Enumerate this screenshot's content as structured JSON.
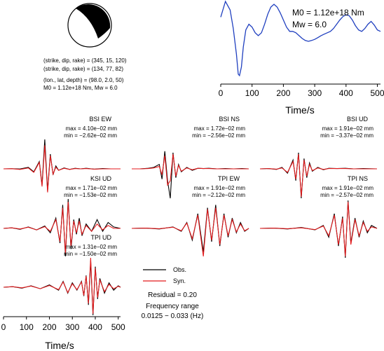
{
  "beachball": {
    "params": [
      "(strike, dip, rake) = (345, 15, 120)",
      "(strike, dip, rake) = (134, 77, 82)",
      "(lon., lat, depth) = (98.0, 2.0, 50)",
      "M0 = 1.12e+18 Nm, Mw = 6.0"
    ]
  },
  "colors": {
    "observed": "#000000",
    "synthetic": "#e41a1c",
    "stf": "#1f3fbf"
  },
  "chart_data": [
    {
      "type": "line",
      "panel": "source-time-function",
      "annotations": [
        "M0 = 1.12e+18 Nm",
        "Mw = 6.0"
      ],
      "xlabel": "Time/s",
      "xlim": [
        0,
        510
      ],
      "xticks": [
        "0",
        "100",
        "200",
        "300",
        "400",
        "500"
      ],
      "ylim": [
        -1.5,
        1.25
      ],
      "series": [
        {
          "x": [
            0,
            15,
            30,
            40,
            50,
            56,
            60,
            66,
            72,
            80,
            90,
            100,
            110,
            120,
            130,
            140,
            150,
            160,
            170,
            180,
            190,
            200,
            210,
            220,
            230,
            240,
            250,
            260,
            270,
            280,
            290,
            300,
            310,
            320,
            330,
            340,
            350,
            360,
            370,
            380,
            390,
            400,
            410,
            420,
            430,
            440,
            450,
            460,
            470,
            480,
            490,
            500,
            510
          ],
          "y": [
            0.7,
            1.25,
            0.95,
            0.3,
            -0.6,
            -1.3,
            -1.35,
            -1.05,
            -0.35,
            0.25,
            0.45,
            0.35,
            0.15,
            0.05,
            0.15,
            0.45,
            0.8,
            1.05,
            1.15,
            1.05,
            0.85,
            0.6,
            0.35,
            0.2,
            0.2,
            0.15,
            0.05,
            -0.05,
            -0.12,
            -0.15,
            -0.12,
            -0.08,
            -0.02,
            0.05,
            0.1,
            0.15,
            0.2,
            0.3,
            0.45,
            0.6,
            0.72,
            0.78,
            0.75,
            0.6,
            0.4,
            0.25,
            0.2,
            0.3,
            0.45,
            0.55,
            0.42,
            0.25,
            0.2
          ]
        }
      ]
    },
    {
      "type": "line",
      "panel": "BSI EW",
      "title": "BSI EW",
      "max": "max = 4.10e−02 mm",
      "min": "min = −2.62e−02 mm",
      "series": [
        {
          "name": "Obs.",
          "x": [
            0,
            12,
            24,
            36,
            44,
            52,
            56,
            60,
            64,
            68,
            72,
            76,
            80,
            88,
            96,
            104,
            112,
            120,
            132,
            144,
            156,
            170
          ],
          "y": [
            0,
            0.005,
            -0.005,
            0.05,
            -0.1,
            0.25,
            -0.55,
            1.0,
            -0.75,
            0.5,
            -0.2,
            0.1,
            -0.05,
            0.03,
            -0.02,
            0.02,
            0,
            0.02,
            -0.01,
            0.01,
            0,
            0
          ]
        },
        {
          "name": "Syn.",
          "x": [
            0,
            12,
            24,
            36,
            44,
            52,
            56,
            60,
            64,
            68,
            72,
            76,
            80,
            88,
            96,
            104,
            112,
            120,
            132,
            144,
            156,
            170
          ],
          "y": [
            0,
            0.005,
            -0.02,
            0.03,
            -0.12,
            0.22,
            -0.6,
            0.8,
            -0.8,
            0.45,
            -0.18,
            0.06,
            -0.05,
            0.02,
            -0.02,
            0.01,
            0,
            0.01,
            -0.01,
            0,
            0,
            0
          ]
        }
      ]
    },
    {
      "type": "line",
      "panel": "BSI NS",
      "title": "BSI NS",
      "max": "max = 1.72e−02 mm",
      "min": "min = −2.56e−02 mm",
      "series": [
        {
          "name": "Obs.",
          "x": [
            0,
            12,
            24,
            32,
            40,
            44,
            48,
            52,
            56,
            60,
            64,
            68,
            72,
            80,
            88,
            96,
            104,
            112,
            124,
            136,
            148,
            160,
            170
          ],
          "y": [
            0,
            0,
            0.02,
            0.05,
            0.15,
            -0.35,
            0.6,
            -0.4,
            -1.0,
            0.55,
            -0.3,
            0.15,
            -0.1,
            0.05,
            -0.05,
            0.02,
            0.01,
            0.02,
            0,
            0.01,
            0,
            0.01,
            0
          ]
        },
        {
          "name": "Syn.",
          "x": [
            0,
            12,
            24,
            32,
            40,
            44,
            48,
            52,
            56,
            60,
            64,
            68,
            72,
            80,
            88,
            96,
            104,
            112,
            124,
            136,
            148,
            160,
            170
          ],
          "y": [
            0,
            0,
            0.01,
            0.03,
            0.08,
            -0.2,
            0.45,
            -0.55,
            -0.4,
            0.5,
            -0.25,
            0.12,
            -0.08,
            0.03,
            -0.03,
            0.02,
            0.01,
            0.01,
            0,
            0,
            0,
            0,
            0
          ]
        }
      ]
    },
    {
      "type": "line",
      "panel": "BSI UD",
      "title": "BSI UD",
      "max": "max = 1.91e−02 mm",
      "min": "min = −3.37e−02 mm",
      "series": [
        {
          "name": "Obs.",
          "x": [
            0,
            12,
            24,
            32,
            40,
            48,
            52,
            56,
            60,
            64,
            68,
            72,
            76,
            84,
            92,
            100,
            112,
            124,
            136,
            150,
            170
          ],
          "y": [
            0,
            0.01,
            -0.02,
            0.05,
            -0.15,
            0.3,
            -0.4,
            0.55,
            -1.0,
            0.35,
            -0.3,
            0.2,
            -0.08,
            0.05,
            -0.03,
            0.02,
            0.01,
            0.02,
            0,
            0.01,
            0
          ]
        },
        {
          "name": "Syn.",
          "x": [
            0,
            12,
            24,
            32,
            40,
            48,
            52,
            56,
            60,
            64,
            68,
            72,
            76,
            84,
            92,
            100,
            112,
            124,
            136,
            150,
            170
          ],
          "y": [
            0,
            0.01,
            -0.01,
            0.03,
            -0.12,
            0.25,
            -0.35,
            0.5,
            -0.95,
            0.3,
            -0.25,
            0.15,
            -0.06,
            0.03,
            -0.02,
            0.01,
            0.01,
            0.01,
            0,
            0,
            0
          ]
        }
      ]
    },
    {
      "type": "line",
      "panel": "KSI UD",
      "title": "KSI UD",
      "max": "max = 1.71e−02 mm",
      "min": "min = −1.53e−02 mm",
      "series": [
        {
          "name": "Obs.",
          "x": [
            0,
            12,
            24,
            36,
            48,
            60,
            68,
            76,
            82,
            86,
            90,
            94,
            98,
            102,
            106,
            110,
            114,
            120,
            128,
            136,
            144,
            152,
            160,
            170
          ],
          "y": [
            0,
            0.02,
            -0.03,
            0.05,
            -0.05,
            0.08,
            -0.15,
            0.35,
            -0.5,
            0.8,
            -0.95,
            1.0,
            -0.7,
            0.3,
            -0.2,
            0.35,
            -0.25,
            0.15,
            -0.1,
            0.3,
            -0.1,
            0.2,
            0.05,
            0
          ]
        },
        {
          "name": "Syn.",
          "x": [
            0,
            12,
            24,
            36,
            48,
            60,
            68,
            76,
            82,
            86,
            90,
            94,
            98,
            102,
            106,
            110,
            114,
            120,
            128,
            136,
            144,
            152,
            160,
            170
          ],
          "y": [
            0,
            0.02,
            -0.02,
            0.04,
            -0.05,
            0.06,
            -0.1,
            0.3,
            -0.45,
            0.7,
            -0.85,
            0.9,
            -0.6,
            0.25,
            -0.15,
            0.25,
            -0.2,
            0.1,
            -0.1,
            0.15,
            -0.05,
            0.1,
            0,
            0
          ]
        }
      ]
    },
    {
      "type": "line",
      "panel": "TPI EW",
      "title": "TPI EW",
      "max": "max = 1.91e−02 mm",
      "min": "min = −2.12e−02 mm",
      "series": [
        {
          "name": "Obs.",
          "x": [
            0,
            20,
            40,
            60,
            72,
            80,
            88,
            96,
            104,
            110,
            116,
            122,
            128,
            134,
            140,
            146,
            152,
            158,
            164,
            170
          ],
          "y": [
            0,
            0.01,
            -0.02,
            0.05,
            -0.1,
            0.2,
            -0.4,
            0.5,
            -0.8,
            0.7,
            -0.45,
            0.8,
            -0.6,
            0.5,
            -0.3,
            0.35,
            -0.15,
            0.2,
            -0.1,
            0
          ]
        },
        {
          "name": "Syn.",
          "x": [
            0,
            20,
            40,
            60,
            72,
            80,
            88,
            96,
            104,
            110,
            116,
            122,
            128,
            134,
            140,
            146,
            152,
            158,
            164,
            170
          ],
          "y": [
            0,
            0.01,
            -0.01,
            0.04,
            -0.08,
            0.18,
            -0.35,
            0.45,
            -0.95,
            0.65,
            -0.4,
            0.7,
            -0.55,
            0.45,
            -0.25,
            0.3,
            -0.12,
            0.15,
            -0.08,
            0
          ]
        }
      ]
    },
    {
      "type": "line",
      "panel": "TPI NS",
      "title": "TPI NS",
      "max": "max = 1.91e−02 mm",
      "min": "min = −2.57e−02 mm",
      "series": [
        {
          "name": "Obs.",
          "x": [
            0,
            20,
            40,
            60,
            80,
            92,
            100,
            108,
            114,
            120,
            124,
            128,
            132,
            138,
            144,
            150,
            156,
            162,
            170
          ],
          "y": [
            0,
            0.01,
            -0.02,
            0.03,
            -0.05,
            0.1,
            -0.3,
            0.5,
            -0.6,
            0.4,
            -1.0,
            0.95,
            -0.5,
            0.35,
            -0.3,
            0.25,
            -0.15,
            0.1,
            0
          ]
        },
        {
          "name": "Syn.",
          "x": [
            0,
            20,
            40,
            60,
            80,
            92,
            100,
            108,
            114,
            120,
            124,
            128,
            132,
            138,
            144,
            150,
            156,
            162,
            170
          ],
          "y": [
            0,
            0.01,
            -0.01,
            0.02,
            -0.04,
            0.08,
            -0.25,
            0.45,
            -0.55,
            0.35,
            -0.95,
            0.9,
            -0.55,
            0.3,
            -0.25,
            0.2,
            -0.1,
            0.05,
            0
          ]
        }
      ]
    },
    {
      "type": "line",
      "panel": "TPI UD",
      "title": "TPI UD",
      "max": "max = 1.31e−02 mm",
      "min": "min = −1.50e−02 mm",
      "xlabel": "Time/s",
      "xlim": [
        0,
        510
      ],
      "xticks": [
        "0",
        "100",
        "200",
        "300",
        "400",
        "500"
      ],
      "series": [
        {
          "name": "Obs.",
          "x": [
            0,
            40,
            80,
            120,
            160,
            200,
            240,
            260,
            280,
            300,
            320,
            340,
            350,
            360,
            370,
            380,
            390,
            400,
            410,
            420,
            440,
            460,
            480,
            500,
            510
          ],
          "y": [
            0,
            0.02,
            -0.03,
            0.05,
            -0.05,
            0.08,
            -0.1,
            0.2,
            -0.2,
            0.15,
            -0.1,
            0.2,
            -0.3,
            0.4,
            -0.6,
            0.9,
            -0.95,
            0.7,
            -0.4,
            0.3,
            -0.2,
            0.15,
            -0.1,
            0.05,
            0
          ]
        },
        {
          "name": "Syn.",
          "x": [
            0,
            40,
            80,
            120,
            160,
            200,
            240,
            260,
            280,
            300,
            320,
            340,
            350,
            360,
            370,
            380,
            390,
            400,
            410,
            420,
            440,
            460,
            480,
            500,
            510
          ],
          "y": [
            0,
            0.02,
            -0.02,
            0.04,
            -0.05,
            0.06,
            -0.08,
            0.18,
            -0.18,
            0.12,
            -0.08,
            0.18,
            -0.28,
            0.38,
            -0.55,
            1.0,
            -0.9,
            0.65,
            -0.35,
            0.25,
            -0.15,
            0.1,
            -0.05,
            0.03,
            0
          ]
        }
      ]
    }
  ],
  "legend": {
    "entries": [
      {
        "name": "Obs.",
        "color": "#000000"
      },
      {
        "name": "Syn.",
        "color": "#e41a1c"
      }
    ],
    "residual": "Residual = 0.20",
    "freq_label": "Frequency range",
    "freq_value": "0.0125 − 0.033 (Hz)"
  }
}
